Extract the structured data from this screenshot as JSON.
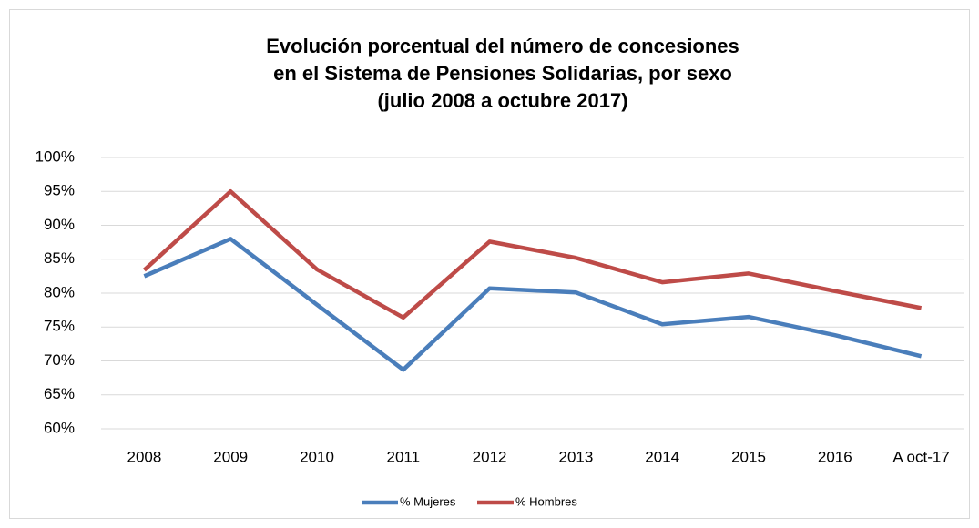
{
  "chart_data": {
    "type": "line",
    "title": [
      "Evolución porcentual del número de concesiones",
      "en el Sistema de Pensiones Solidarias, por sexo",
      "(julio 2008 a octubre 2017)"
    ],
    "categories": [
      "2008",
      "2009",
      "2010",
      "2011",
      "2012",
      "2013",
      "2014",
      "2015",
      "2016",
      "A oct-17"
    ],
    "series": [
      {
        "name": "% Mujeres",
        "color": "#4a7ebb",
        "values": [
          82.5,
          88,
          78.3,
          68.7,
          80.7,
          80.1,
          75.4,
          76.5,
          73.8,
          70.7
        ]
      },
      {
        "name": "% Hombres",
        "color": "#be4b48",
        "values": [
          83.4,
          95,
          83.5,
          76.4,
          87.6,
          85.2,
          81.6,
          82.9,
          80.3,
          77.8
        ]
      }
    ],
    "ylim": [
      60,
      100
    ],
    "yticks": [
      {
        "value": 60,
        "label": "60%"
      },
      {
        "value": 65,
        "label": "65%"
      },
      {
        "value": 70,
        "label": "70%"
      },
      {
        "value": 75,
        "label": "75%"
      },
      {
        "value": 80,
        "label": "80%"
      },
      {
        "value": 85,
        "label": "85%"
      },
      {
        "value": 90,
        "label": "90%"
      },
      {
        "value": 95,
        "label": "95%"
      },
      {
        "value": 100,
        "label": "100%"
      }
    ],
    "grid": true,
    "legend": "bottom"
  }
}
